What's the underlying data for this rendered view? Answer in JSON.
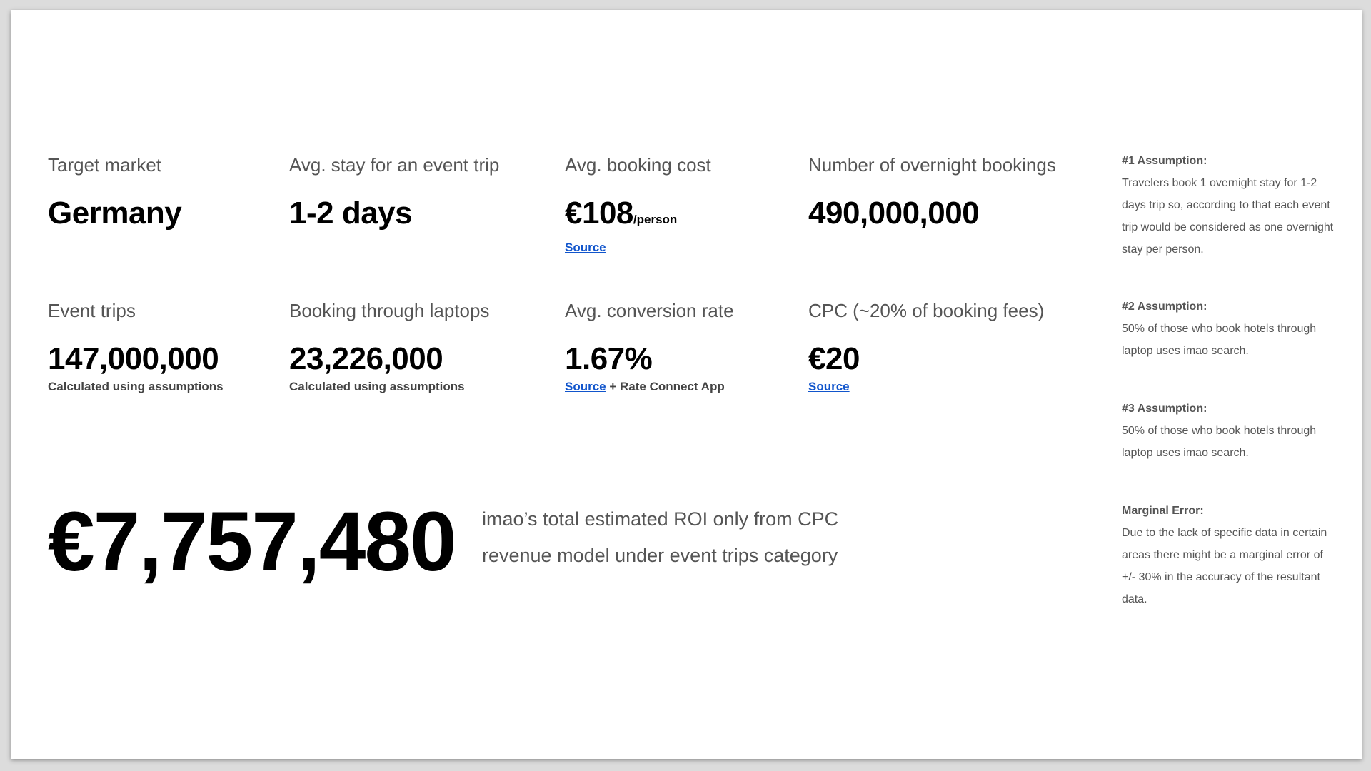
{
  "metrics": {
    "target_market": {
      "label": "Target market",
      "value": "Germany"
    },
    "avg_stay": {
      "label": "Avg. stay for an event trip",
      "value": "1-2 days"
    },
    "avg_booking_cost": {
      "label": "Avg. booking cost",
      "value": "€108",
      "unit": "/person",
      "source": "Source"
    },
    "overnight_bookings": {
      "label": "Number of overnight bookings",
      "value": "490,000,000"
    },
    "event_trips": {
      "label": "Event trips",
      "value": "147,000,000",
      "note": "Calculated using assumptions"
    },
    "booking_laptops": {
      "label": "Booking through laptops",
      "value": "23,226,000",
      "note": "Calculated using assumptions"
    },
    "conversion_rate": {
      "label": "Avg. conversion rate",
      "value": "1.67%",
      "source": "Source",
      "note_suffix": " + Rate Connect App"
    },
    "cpc": {
      "label": "CPC (~20% of booking fees)",
      "value": "€20",
      "source": "Source"
    }
  },
  "roi": {
    "amount": "€7,757,480",
    "description_line1": "imao’s total estimated ROI only from CPC",
    "description_line2": "revenue model under event trips category"
  },
  "assumptions": [
    {
      "title": "#1 Assumption:",
      "text": "Travelers book 1 overnight stay for 1-2 days trip so, according to that each event trip would be considered as one overnight stay per person."
    },
    {
      "title": "#2 Assumption:",
      "text": "50% of those who book hotels through laptop uses imao search."
    },
    {
      "title": "#3 Assumption:",
      "text": "50% of those who book hotels through laptop uses imao search."
    },
    {
      "title": "Marginal Error:",
      "text": "Due to the lack of specific data in certain areas there might be a marginal error of +/- 30% in the accuracy of the resultant data."
    }
  ],
  "colors": {
    "link": "#1155cc",
    "label": "#555555",
    "value": "#000000"
  }
}
